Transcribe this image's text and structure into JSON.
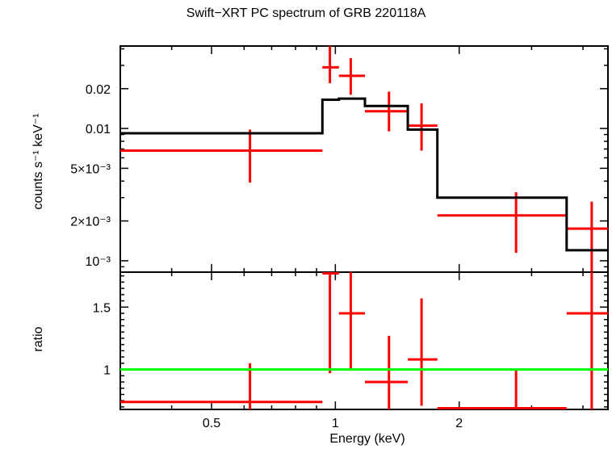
{
  "chart_data": [
    {
      "type": "scatter",
      "panel": "spectrum",
      "title": "Swift−XRT PC spectrum of GRB 220118A",
      "ylabel": "counts s⁻¹ keV⁻¹",
      "xscale": "log",
      "yscale": "log",
      "xlim": [
        0.3,
        4.6
      ],
      "ylim": [
        0.00082,
        0.042
      ],
      "yticks": [
        {
          "value": 0.02,
          "label": "0.02"
        },
        {
          "value": 0.01,
          "label": "0.01"
        },
        {
          "value": 0.005,
          "label": "5×10⁻³"
        },
        {
          "value": 0.002,
          "label": "2×10⁻³"
        },
        {
          "value": 0.001,
          "label": "10⁻³"
        }
      ],
      "series": [
        {
          "kind": "data",
          "color": "#ff0000",
          "points": [
            {
              "x": 0.62,
              "xlo": 0.3,
              "xhi": 0.93,
              "y": 0.0068,
              "ylo": 0.0039,
              "yhi": 0.0098
            },
            {
              "x": 0.97,
              "xlo": 0.93,
              "xhi": 1.02,
              "y": 0.029,
              "ylo": 0.022,
              "yhi": 0.042
            },
            {
              "x": 1.09,
              "xlo": 1.02,
              "xhi": 1.18,
              "y": 0.025,
              "ylo": 0.018,
              "yhi": 0.034
            },
            {
              "x": 1.35,
              "xlo": 1.18,
              "xhi": 1.5,
              "y": 0.0135,
              "ylo": 0.0095,
              "yhi": 0.019
            },
            {
              "x": 1.62,
              "xlo": 1.5,
              "xhi": 1.77,
              "y": 0.0105,
              "ylo": 0.0068,
              "yhi": 0.0155
            },
            {
              "x": 2.75,
              "xlo": 1.77,
              "xhi": 3.65,
              "y": 0.0022,
              "ylo": 0.00115,
              "yhi": 0.0033
            },
            {
              "x": 4.2,
              "xlo": 3.65,
              "xhi": 4.6,
              "y": 0.00175,
              "ylo": 0.00082,
              "yhi": 0.0028
            }
          ]
        },
        {
          "kind": "model",
          "color": "#000000",
          "steps": [
            {
              "xlo": 0.3,
              "xhi": 0.93,
              "y": 0.0092
            },
            {
              "xlo": 0.93,
              "xhi": 1.02,
              "y": 0.0165
            },
            {
              "xlo": 1.02,
              "xhi": 1.18,
              "y": 0.0168
            },
            {
              "xlo": 1.18,
              "xhi": 1.5,
              "y": 0.0148
            },
            {
              "xlo": 1.5,
              "xhi": 1.77,
              "y": 0.0098
            },
            {
              "xlo": 1.77,
              "xhi": 3.65,
              "y": 0.003
            },
            {
              "xlo": 3.65,
              "xhi": 4.6,
              "y": 0.0012
            }
          ]
        }
      ]
    },
    {
      "type": "scatter",
      "panel": "ratio",
      "xlabel": "Energy (keV)",
      "ylabel": "ratio",
      "xscale": "log",
      "yscale": "linear",
      "xlim": [
        0.3,
        4.6
      ],
      "ylim": [
        0.68,
        1.78
      ],
      "xticks": [
        {
          "value": 0.5,
          "label": "0.5"
        },
        {
          "value": 1,
          "label": "1"
        },
        {
          "value": 2,
          "label": "2"
        }
      ],
      "yticks": [
        {
          "value": 1.5,
          "label": "1.5"
        },
        {
          "value": 1,
          "label": "1"
        }
      ],
      "series": [
        {
          "kind": "data",
          "color": "#ff0000",
          "points": [
            {
              "x": 0.62,
              "xlo": 0.3,
              "xhi": 0.93,
              "y": 0.74,
              "ylo": 0.68,
              "yhi": 1.05
            },
            {
              "x": 0.97,
              "xlo": 0.93,
              "xhi": 1.02,
              "y": 1.77,
              "ylo": 0.97,
              "yhi": 1.78
            },
            {
              "x": 1.09,
              "xlo": 1.02,
              "xhi": 1.18,
              "y": 1.45,
              "ylo": 0.99,
              "yhi": 1.78
            },
            {
              "x": 1.35,
              "xlo": 1.18,
              "xhi": 1.5,
              "y": 0.9,
              "ylo": 0.68,
              "yhi": 1.27
            },
            {
              "x": 1.62,
              "xlo": 1.5,
              "xhi": 1.77,
              "y": 1.08,
              "ylo": 0.71,
              "yhi": 1.57
            },
            {
              "x": 2.75,
              "xlo": 1.77,
              "xhi": 3.65,
              "y": 0.69,
              "ylo": 0.68,
              "yhi": 1.0
            },
            {
              "x": 4.2,
              "xlo": 3.65,
              "xhi": 4.6,
              "y": 1.45,
              "ylo": 0.68,
              "yhi": 1.78
            }
          ]
        },
        {
          "kind": "reference",
          "color": "#00ff00",
          "y": 1
        }
      ]
    }
  ]
}
